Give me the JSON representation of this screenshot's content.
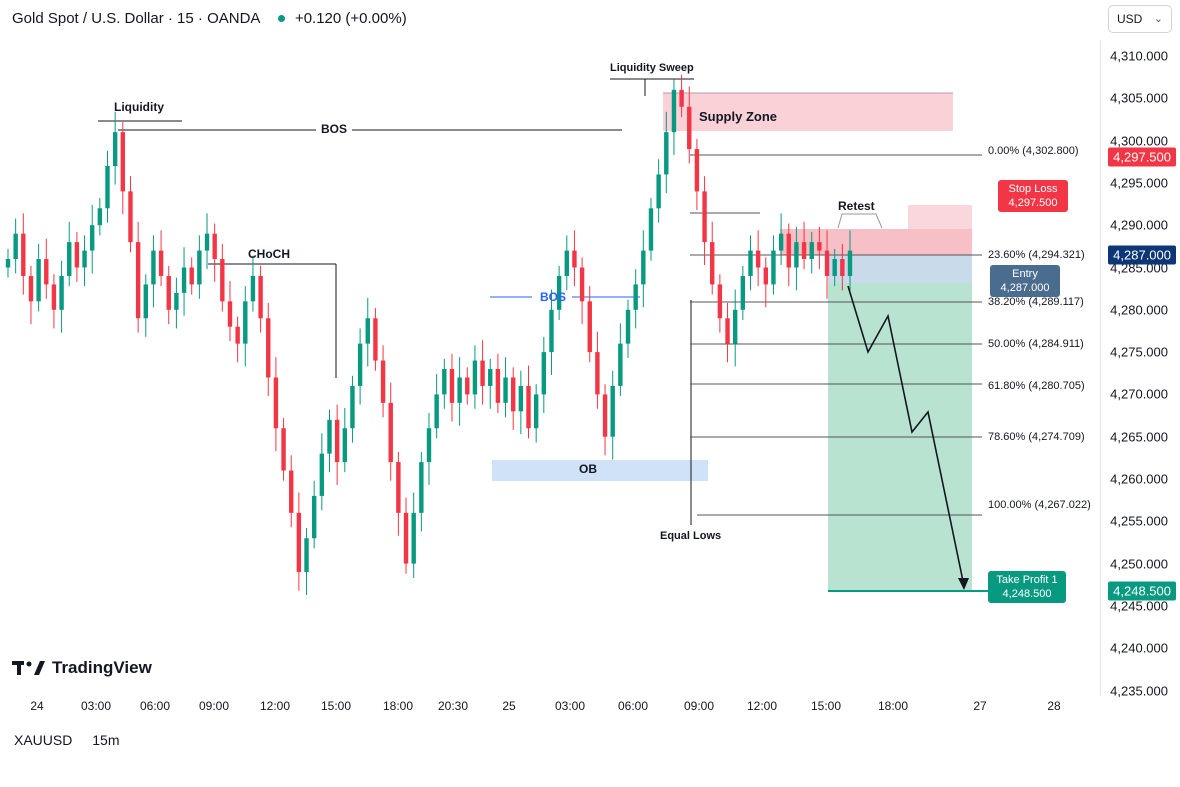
{
  "header": {
    "title": "Gold Spot / U.S. Dollar · 15 · OANDA",
    "change": "+0.120 (+0.00%)"
  },
  "currency": {
    "label": "USD"
  },
  "logo": {
    "text": "TradingView"
  },
  "symbol": {
    "ticker": "XAUUSD",
    "interval": "15m"
  },
  "colors": {
    "up": "#089981",
    "down": "#f23645",
    "stop": "#f23645",
    "entry": "#4a6d8f",
    "target": "#089981",
    "price": "#0c3675"
  },
  "price_axis": [
    "4,310.000",
    "4,305.000",
    "4,300.000",
    "4,295.000",
    "4,290.000",
    "4,285.000",
    "4,280.000",
    "4,275.000",
    "4,270.000",
    "4,265.000",
    "4,260.000",
    "4,255.000",
    "4,250.000",
    "4,245.000",
    "4,240.000",
    "4,235.000"
  ],
  "price_badges": {
    "stop": "4,297.500",
    "current": "4,287.000",
    "target": "4,248.500"
  },
  "time_axis": [
    "24",
    "03:00",
    "06:00",
    "09:00",
    "12:00",
    "15:00",
    "18:00",
    "20:30",
    "25",
    "03:00",
    "06:00",
    "09:00",
    "12:00",
    "15:00",
    "18:00",
    "27",
    "28"
  ],
  "annotations": {
    "liquidity": "Liquidity",
    "bos_top": "BOS",
    "choch": "CHoCH",
    "liquidity_sweep": "Liquidity Sweep",
    "supply_zone": "Supply Zone",
    "bos_mid": "BOS",
    "ob": "OB",
    "equal_lows": "Equal Lows",
    "retest": "Retest"
  },
  "trade": {
    "stop_label": "Stop Loss",
    "stop_value": "4,297.500",
    "entry_label": "Entry",
    "entry_value": "4,287.000",
    "tp_label": "Take Profit 1",
    "tp_value": "4,248.500"
  },
  "fib_levels": [
    "0.00% (4,302.800)",
    "23.60% (4,294.321)",
    "38.20% (4,289.117)",
    "50.00% (4,284.911)",
    "61.80% (4,280.705)",
    "78.60% (4,274.709)",
    "100.00% (4,267.022)"
  ],
  "chart_data": {
    "type": "candlestick",
    "series_closes": [
      4286,
      4289,
      4284,
      4281,
      4286,
      4283,
      4280,
      4284,
      4288,
      4285,
      4287,
      4290,
      4292,
      4297,
      4301,
      4294,
      4288,
      4279,
      4283,
      4287,
      4284,
      4280,
      4282,
      4285,
      4283,
      4287,
      4289,
      4286,
      4281,
      4278,
      4276,
      4281,
      4284,
      4279,
      4272,
      4266,
      4261,
      4256,
      4249,
      4253,
      4258,
      4263,
      4267,
      4262,
      4266,
      4271,
      4276,
      4279,
      4274,
      4269,
      4262,
      4256,
      4250,
      4256,
      4262,
      4266,
      4270,
      4273,
      4269,
      4272,
      4270,
      4274,
      4271,
      4273,
      4269,
      4272,
      4268,
      4271,
      4266,
      4270,
      4275,
      4280,
      4284,
      4287,
      4285,
      4281,
      4275,
      4270,
      4265,
      4271,
      4276,
      4280,
      4283,
      4287,
      4292,
      4296,
      4301,
      4306,
      4304,
      4299,
      4294,
      4288,
      4283,
      4279,
      4276,
      4280,
      4284,
      4287,
      4285,
      4283,
      4287,
      4289,
      4285,
      4288,
      4286,
      4288,
      4287,
      4284,
      4286,
      4284,
      4287
    ],
    "y_range": [
      4233,
      4312
    ]
  }
}
